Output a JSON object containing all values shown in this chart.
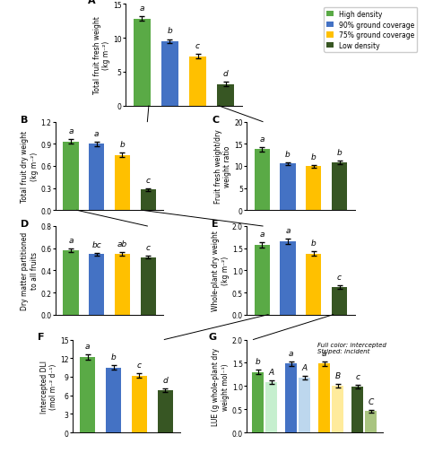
{
  "colors": {
    "green": "#5aaa46",
    "blue": "#4472c4",
    "yellow": "#ffc000",
    "dark_green": "#375623",
    "light_green": "#c6efce",
    "light_blue": "#bdd7ee",
    "light_yellow": "#ffeb9c",
    "light_dark_green": "#a9c480"
  },
  "panel_A": {
    "label": "A",
    "values": [
      12.8,
      9.5,
      7.3,
      3.2
    ],
    "errors": [
      0.3,
      0.3,
      0.3,
      0.3
    ],
    "letters": [
      "a",
      "b",
      "c",
      "d"
    ],
    "ylabel": "Total fruit fresh weight\n(kg m⁻²)",
    "ylim": [
      0,
      15
    ],
    "yticks": [
      0,
      5,
      10,
      15
    ]
  },
  "panel_B": {
    "label": "B",
    "values": [
      0.93,
      0.9,
      0.75,
      0.28
    ],
    "errors": [
      0.03,
      0.03,
      0.03,
      0.02
    ],
    "letters": [
      "a",
      "a",
      "b",
      "c"
    ],
    "ylabel": "Total fruit dry weight\n(kg m⁻²)",
    "ylim": [
      0,
      1.2
    ],
    "yticks": [
      0,
      0.3,
      0.6,
      0.9,
      1.2
    ]
  },
  "panel_C": {
    "label": "C",
    "values": [
      13.8,
      10.5,
      9.9,
      10.8
    ],
    "errors": [
      0.5,
      0.4,
      0.3,
      0.4
    ],
    "letters": [
      "a",
      "b",
      "b",
      "b"
    ],
    "ylabel": "Fruit fresh weight/dry\nweight ratio",
    "ylim": [
      0,
      20
    ],
    "yticks": [
      0,
      5,
      10,
      15,
      20
    ]
  },
  "panel_D": {
    "label": "D",
    "values": [
      0.58,
      0.545,
      0.55,
      0.52
    ],
    "errors": [
      0.015,
      0.015,
      0.015,
      0.015
    ],
    "letters": [
      "a",
      "bc",
      "ab",
      "c"
    ],
    "ylabel": "Dry matter partitioned\nto all fruits",
    "ylim": [
      0,
      0.8
    ],
    "yticks": [
      0,
      0.2,
      0.4,
      0.6,
      0.8
    ]
  },
  "panel_E": {
    "label": "E",
    "values": [
      1.58,
      1.65,
      1.38,
      0.62
    ],
    "errors": [
      0.06,
      0.06,
      0.05,
      0.04
    ],
    "letters": [
      "a",
      "a",
      "b",
      "c"
    ],
    "ylabel": "Whole-plant dry weight\n(kg m⁻²)",
    "ylim": [
      0,
      2
    ],
    "yticks": [
      0,
      0.5,
      1.0,
      1.5,
      2.0
    ]
  },
  "panel_F": {
    "label": "F",
    "values": [
      12.2,
      10.5,
      9.2,
      6.8
    ],
    "errors": [
      0.4,
      0.4,
      0.35,
      0.3
    ],
    "letters": [
      "a",
      "b",
      "c",
      "d"
    ],
    "ylabel": "Intercepted DLI\n(mol m⁻² d⁻¹)",
    "ylim": [
      0,
      15
    ],
    "yticks": [
      0,
      3,
      6,
      9,
      12,
      15
    ]
  },
  "panel_G": {
    "label": "G",
    "values_full": [
      1.3,
      1.48,
      1.48,
      0.98
    ],
    "values_stripe": [
      1.08,
      1.18,
      1.0,
      0.46
    ],
    "errors_full": [
      0.05,
      0.05,
      0.05,
      0.04
    ],
    "errors_stripe": [
      0.04,
      0.04,
      0.04,
      0.03
    ],
    "letters_full": [
      "b",
      "a",
      "a",
      "c"
    ],
    "letters_stripe": [
      "A",
      "A",
      "B",
      "C"
    ],
    "ylabel": "LUE (g whole-plant dry\nweight mol⁻¹)",
    "ylim": [
      0,
      2
    ],
    "yticks": [
      0,
      0.5,
      1.0,
      1.5,
      2.0
    ],
    "note": "Full color: intercepted\nStriped: incident"
  },
  "legend_labels": [
    "High density",
    "90% ground coverage",
    "75% ground coverage",
    "Low density"
  ]
}
